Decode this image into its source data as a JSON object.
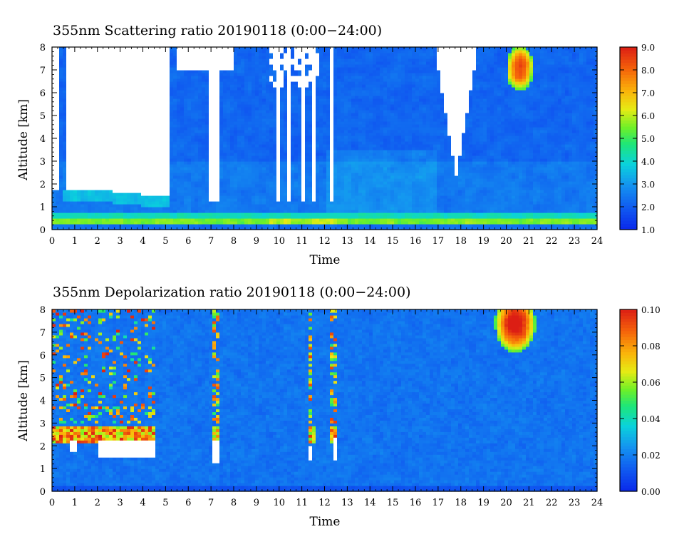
{
  "figures": [
    {
      "title": "355nm Scattering ratio  20190118 (0:00−24:00)",
      "xlabel": "Time",
      "ylabel": "Altitude [km]",
      "colorbar_labels": [
        "9.0",
        "8.0",
        "7.0",
        "6.0",
        "5.0",
        "4.0",
        "3.0",
        "2.0",
        "1.0"
      ]
    },
    {
      "title": "355nm Depolarization ratio  20190118 (0:00−24:00)",
      "xlabel": "Time",
      "ylabel": "Altitude [km]",
      "colorbar_labels": [
        "0.10",
        "0.08",
        "0.06",
        "0.04",
        "0.02",
        "0.00"
      ]
    }
  ],
  "chart_data": [
    {
      "type": "heatmap",
      "title": "355nm Scattering ratio  20190118 (0:00−24:00)",
      "xlabel": "Time",
      "ylabel": "Altitude [km]",
      "xlim": [
        0,
        24
      ],
      "ylim": [
        0,
        8
      ],
      "x_ticks": [
        "0",
        "1",
        "2",
        "3",
        "4",
        "5",
        "6",
        "7",
        "8",
        "9",
        "10",
        "11",
        "12",
        "13",
        "14",
        "15",
        "16",
        "17",
        "18",
        "19",
        "20",
        "21",
        "22",
        "23",
        "24"
      ],
      "y_ticks": [
        "0",
        "1",
        "2",
        "3",
        "4",
        "5",
        "6",
        "7",
        "8"
      ],
      "color_range": [
        1.0,
        9.0
      ],
      "colorbar_ticks": [
        "1.0",
        "2.0",
        "3.0",
        "4.0",
        "5.0",
        "6.0",
        "7.0",
        "8.0",
        "9.0"
      ],
      "colormap": "blue-cyan-green-yellow-red",
      "no_data_color": "#ffffff"
    },
    {
      "type": "heatmap",
      "title": "355nm Depolarization ratio  20190118 (0:00−24:00)",
      "xlabel": "Time",
      "ylabel": "Altitude [km]",
      "xlim": [
        0,
        24
      ],
      "ylim": [
        0,
        8
      ],
      "x_ticks": [
        "0",
        "1",
        "2",
        "3",
        "4",
        "5",
        "6",
        "7",
        "8",
        "9",
        "10",
        "11",
        "12",
        "13",
        "14",
        "15",
        "16",
        "17",
        "18",
        "19",
        "20",
        "21",
        "22",
        "23",
        "24"
      ],
      "y_ticks": [
        "0",
        "1",
        "2",
        "3",
        "4",
        "5",
        "6",
        "7",
        "8"
      ],
      "color_range": [
        0.0,
        0.1
      ],
      "colorbar_ticks": [
        "0.00",
        "0.02",
        "0.04",
        "0.06",
        "0.08",
        "0.10"
      ],
      "colormap": "blue-cyan-green-yellow-red",
      "no_data_color": "#ffffff"
    }
  ]
}
